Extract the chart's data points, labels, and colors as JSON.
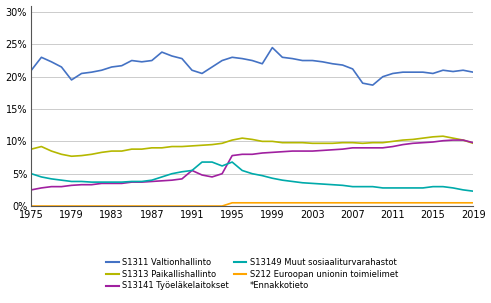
{
  "years": [
    1975,
    1976,
    1977,
    1978,
    1979,
    1980,
    1981,
    1982,
    1983,
    1984,
    1985,
    1986,
    1987,
    1988,
    1989,
    1990,
    1991,
    1992,
    1993,
    1994,
    1995,
    1996,
    1997,
    1998,
    1999,
    2000,
    2001,
    2002,
    2003,
    2004,
    2005,
    2006,
    2007,
    2008,
    2009,
    2010,
    2011,
    2012,
    2013,
    2014,
    2015,
    2016,
    2017,
    2018,
    2019
  ],
  "S1311": [
    21.0,
    23.0,
    22.3,
    21.5,
    19.5,
    20.5,
    20.7,
    21.0,
    21.5,
    21.7,
    22.5,
    22.3,
    22.5,
    23.8,
    23.2,
    22.8,
    21.0,
    20.5,
    21.5,
    22.5,
    23.0,
    22.8,
    22.5,
    22.0,
    24.5,
    23.0,
    22.8,
    22.5,
    22.5,
    22.3,
    22.0,
    21.8,
    21.2,
    19.0,
    18.7,
    20.0,
    20.5,
    20.7,
    20.7,
    20.7,
    20.5,
    21.0,
    20.8,
    21.0,
    20.7
  ],
  "S1313": [
    8.8,
    9.2,
    8.5,
    8.0,
    7.7,
    7.8,
    8.0,
    8.3,
    8.5,
    8.5,
    8.8,
    8.8,
    9.0,
    9.0,
    9.2,
    9.2,
    9.3,
    9.4,
    9.5,
    9.7,
    10.2,
    10.5,
    10.3,
    10.0,
    10.0,
    9.8,
    9.8,
    9.8,
    9.7,
    9.7,
    9.7,
    9.8,
    9.8,
    9.7,
    9.8,
    9.8,
    10.0,
    10.2,
    10.3,
    10.5,
    10.7,
    10.8,
    10.5,
    10.2,
    9.7
  ],
  "S13141": [
    2.5,
    2.8,
    3.0,
    3.0,
    3.2,
    3.3,
    3.3,
    3.5,
    3.5,
    3.5,
    3.7,
    3.7,
    3.8,
    3.9,
    4.0,
    4.2,
    5.5,
    4.8,
    4.5,
    5.0,
    7.8,
    8.0,
    8.0,
    8.2,
    8.3,
    8.4,
    8.5,
    8.5,
    8.5,
    8.6,
    8.7,
    8.8,
    9.0,
    9.0,
    9.0,
    9.0,
    9.2,
    9.5,
    9.7,
    9.8,
    9.9,
    10.1,
    10.2,
    10.2,
    9.8
  ],
  "S13149": [
    5.0,
    4.5,
    4.2,
    4.0,
    3.8,
    3.8,
    3.7,
    3.7,
    3.7,
    3.7,
    3.8,
    3.8,
    4.0,
    4.5,
    5.0,
    5.3,
    5.5,
    6.8,
    6.8,
    6.2,
    6.8,
    5.5,
    5.0,
    4.7,
    4.3,
    4.0,
    3.8,
    3.6,
    3.5,
    3.4,
    3.3,
    3.2,
    3.0,
    3.0,
    3.0,
    2.8,
    2.8,
    2.8,
    2.8,
    2.8,
    3.0,
    3.0,
    2.8,
    2.5,
    2.3
  ],
  "S212": [
    0.0,
    0.0,
    0.0,
    0.0,
    0.0,
    0.0,
    0.0,
    0.0,
    0.0,
    0.0,
    0.0,
    0.0,
    0.0,
    0.0,
    0.0,
    0.0,
    0.0,
    0.0,
    0.0,
    0.0,
    0.5,
    0.5,
    0.5,
    0.5,
    0.5,
    0.5,
    0.5,
    0.5,
    0.5,
    0.5,
    0.5,
    0.5,
    0.5,
    0.5,
    0.5,
    0.5,
    0.5,
    0.5,
    0.5,
    0.5,
    0.5,
    0.5,
    0.5,
    0.5,
    0.5
  ],
  "colors": {
    "S1311": "#4472C4",
    "S1313": "#B5B800",
    "S13141": "#A020A0",
    "S13149": "#00AAAA",
    "S212": "#FFA500"
  },
  "legend_labels": {
    "S1311": "S1311 Valtionhallinto",
    "S1313": "S1313 Paikallishallinto",
    "S13141": "S13141 Työeläkelaitokset",
    "S13149": "S13149 Muut sosiaaliturvarahastot",
    "S212": "S212 Euroopan unionin toimielimet"
  },
  "extra_legend": "*Ennakkotieto",
  "xticks": [
    1975,
    1979,
    1983,
    1987,
    1991,
    1995,
    1999,
    2003,
    2007,
    2011,
    2015,
    2019
  ],
  "yticks": [
    0,
    5,
    10,
    15,
    20,
    25,
    30
  ],
  "ylim": [
    0,
    31
  ],
  "xlim": [
    1975,
    2019
  ],
  "grid_color": "#cccccc",
  "background_color": "#ffffff"
}
